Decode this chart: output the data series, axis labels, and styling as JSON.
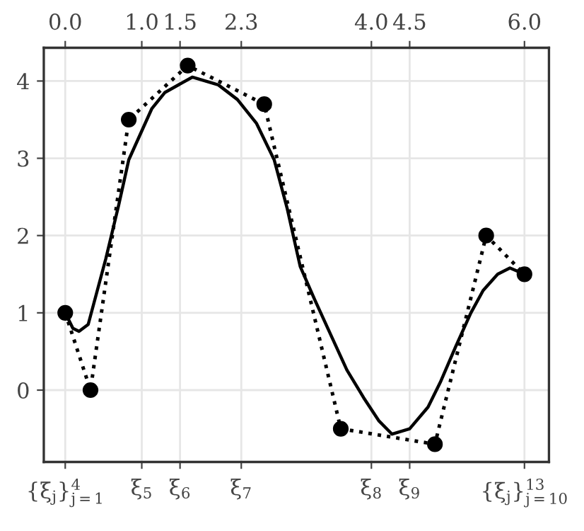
{
  "chart_data": {
    "type": "line",
    "series": [
      {
        "color": "#000000",
        "marker": "circle",
        "line_style": "dotted",
        "x": [
          0,
          0.33,
          0.83,
          1.6,
          2.6,
          3.6,
          4.83,
          5.5,
          6.0
        ],
        "values": [
          1,
          0,
          3.5,
          4.2,
          3.7,
          -0.5,
          -0.7,
          2.0,
          1.5
        ]
      },
      {
        "color": "#000000",
        "marker": "none",
        "line_style": "solid",
        "x": [
          0,
          0.1,
          0.18,
          0.3,
          0.53,
          0.7,
          0.83,
          1.13,
          1.3,
          1.66,
          2.0,
          2.25,
          2.5,
          2.73,
          2.9,
          3.07,
          3.26,
          3.5,
          3.68,
          3.9,
          4.1,
          4.27,
          4.5,
          4.74,
          4.9,
          5.1,
          5.3,
          5.46,
          5.65,
          5.81,
          6.0
        ],
        "values": [
          1,
          0.8,
          0.76,
          0.85,
          1.7,
          2.4,
          2.98,
          3.64,
          3.85,
          4.05,
          3.95,
          3.76,
          3.45,
          2.98,
          2.35,
          1.6,
          1.17,
          0.65,
          0.26,
          -0.1,
          -0.4,
          -0.57,
          -0.5,
          -0.22,
          0.1,
          0.56,
          1.0,
          1.29,
          1.5,
          1.58,
          1.5
        ]
      }
    ],
    "xlim": [
      -0.28,
      6.32
    ],
    "ylim": [
      -0.93,
      4.43
    ],
    "xticks": [
      {
        "value": 0,
        "label": "0.0"
      },
      {
        "value": 1.0,
        "label": "1.0"
      },
      {
        "value": 1.5,
        "label": "1.5"
      },
      {
        "value": 2.3,
        "label": "2.3"
      },
      {
        "value": 4.0,
        "label": "4.0"
      },
      {
        "value": 4.5,
        "label": "4.5"
      },
      {
        "value": 6.0,
        "label": "6.0"
      }
    ],
    "yticks": [
      0,
      1,
      2,
      3,
      4
    ],
    "annotations": [
      "{ξ$_{j}$}$^{4}$$_{j=1}$",
      "ξ$_{5}$",
      "ξ$_{6}$",
      "ξ$_{7}$",
      "ξ$_{8}$",
      "ξ$_{9}$",
      "{ξ$_{j}$}$^{13}$$_{j=10}$"
    ],
    "grid": true
  }
}
